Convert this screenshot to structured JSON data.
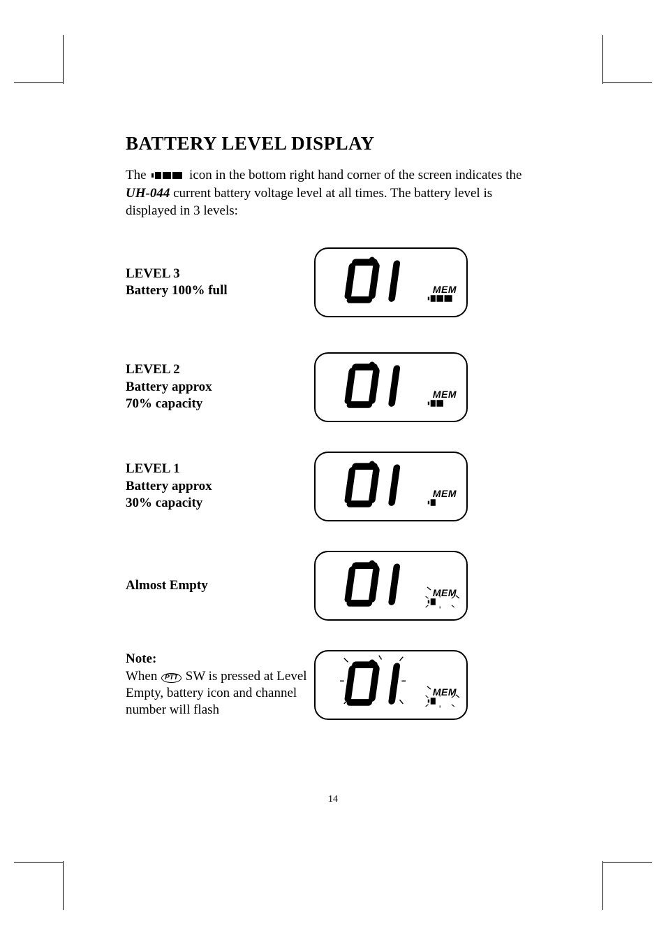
{
  "page_number": "14",
  "title": "BATTERY LEVEL DISPLAY",
  "intro": {
    "pre": "The ",
    "mid": " icon in the bottom right hand corner of the screen indicates the ",
    "model": "UH-044",
    "post": " current battery voltage level at all times.  The battery level is displayed in 3 levels:"
  },
  "levels": [
    {
      "label_line1": "LEVEL 3",
      "label_line2": "Battery 100% full",
      "bars": 3,
      "flash_mem": false,
      "flash_digits": false
    },
    {
      "label_line1": "LEVEL 2",
      "label_line2": "Battery approx",
      "label_line3": "70% capacity",
      "bars": 2,
      "flash_mem": false,
      "flash_digits": false
    },
    {
      "label_line1": "LEVEL 1",
      "label_line2": "Battery approx",
      "label_line3": "30% capacity",
      "bars": 1,
      "flash_mem": false,
      "flash_digits": false
    },
    {
      "label_line1": "Almost Empty",
      "bars": 1,
      "flash_mem": true,
      "flash_digits": false
    }
  ],
  "note": {
    "heading": "Note:",
    "pre": "When ",
    "ptt": "PTT",
    "mid": " SW is pressed at Level Empty, battery icon and channel number will flash",
    "bars": 1,
    "flash_mem": true,
    "flash_digits": true
  },
  "mem_label": "MEM",
  "colors": {
    "fg": "#000000",
    "bg": "#ffffff"
  }
}
